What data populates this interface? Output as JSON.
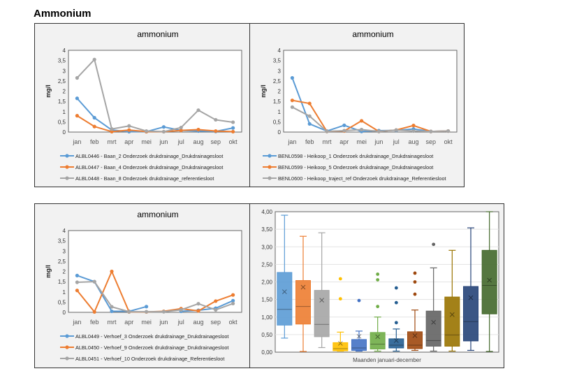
{
  "page_title": "Ammonium",
  "chart_data": [
    {
      "type": "line",
      "title": "ammonium",
      "ylabel": "mg/l",
      "ylim": [
        0,
        4
      ],
      "yticks": [
        "0",
        "0,5",
        "1",
        "1,5",
        "2",
        "2,5",
        "3",
        "3,5",
        "4"
      ],
      "categories": [
        "jan",
        "feb",
        "mrt",
        "apr",
        "mei",
        "jun",
        "jul",
        "aug",
        "sep",
        "okt"
      ],
      "legend": "bottom",
      "series": [
        {
          "name": "ALBL0446 - Baan_2 Onderzoek drukdrainage_Drukdrainagesloot",
          "color": "#5b9bd5",
          "values": [
            1.65,
            0.7,
            0.1,
            0.02,
            0.02,
            0.25,
            0.08,
            0.05,
            0.03,
            0.2
          ]
        },
        {
          "name": "ALBL0447 - Baan_4 Onderzoek drukdrainage_Drukdrainagesloot",
          "color": "#ed7d31",
          "values": [
            0.8,
            0.27,
            0.02,
            0.1,
            0.02,
            0.02,
            0.08,
            0.12,
            0.05,
            0.02
          ]
        },
        {
          "name": "ALBL0448 - Baan_8 Onderzoek drukdrainage_referentiesloot",
          "color": "#a5a5a5",
          "values": [
            2.65,
            3.55,
            0.15,
            0.3,
            0.05,
            0.02,
            0.22,
            1.07,
            0.6,
            0.48
          ]
        }
      ]
    },
    {
      "type": "line",
      "title": "ammonium",
      "ylabel": "mg/l",
      "ylim": [
        0,
        4
      ],
      "yticks": [
        "0",
        "0,5",
        "1",
        "1,5",
        "2",
        "2,5",
        "3",
        "3,5",
        "4"
      ],
      "categories": [
        "jan",
        "feb",
        "mrt",
        "apr",
        "mei",
        "jun",
        "jul",
        "aug",
        "sep",
        "okt"
      ],
      "legend": "bottom",
      "series": [
        {
          "name": "BENL0598 - Heikoop_1 Onderzoek drukdrainage_Drukdrainagesloot",
          "color": "#5b9bd5",
          "values": [
            2.65,
            0.4,
            0.05,
            0.33,
            0.03,
            0.07,
            0.08,
            0.15,
            0.03,
            0.05
          ]
        },
        {
          "name": "BENL0599 - Heikoop_5 Onderzoek drukdrainage_Drukdrainagesloot",
          "color": "#ed7d31",
          "values": [
            1.55,
            1.4,
            0.03,
            0.05,
            0.55,
            0.03,
            0.1,
            0.32,
            0.03,
            0.05
          ]
        },
        {
          "name": "BENL0600 - Heikoop_traject_ref Onderzoek drukdrainage_Referentiesloot",
          "color": "#a5a5a5",
          "values": [
            1.22,
            0.78,
            0.03,
            0.07,
            0.12,
            0.03,
            0.1,
            0.05,
            0.03,
            0.05
          ]
        }
      ]
    },
    {
      "type": "line",
      "title": "ammonium",
      "ylabel": "mg/l",
      "ylim": [
        0,
        4
      ],
      "yticks": [
        "0",
        "0,5",
        "1",
        "1,5",
        "2",
        "2,5",
        "3",
        "3,5",
        "4"
      ],
      "categories": [
        "jan",
        "feb",
        "mrt",
        "apr",
        "mei",
        "jun",
        "jul",
        "aug",
        "sep",
        "okt"
      ],
      "legend": "bottom",
      "series": [
        {
          "name": "ALBL0449 - Verhoef_3 Onderzoek drukdrainage_Drukdrainagesloot",
          "color": "#5b9bd5",
          "values": [
            1.8,
            1.5,
            0.05,
            0.05,
            0.28,
            null,
            0.05,
            0.1,
            0.2,
            0.57
          ]
        },
        {
          "name": "ALBL0450 - Verhoef_9 Onderzoek drukdrainage_Drukdrainagesloot",
          "color": "#ed7d31",
          "values": [
            1.07,
            0.02,
            2.0,
            0.02,
            0.02,
            0.05,
            0.18,
            0.07,
            0.55,
            0.85
          ]
        },
        {
          "name": "ALBL0451 - Verhoef_10 Onderzoek drukdrainage_Referentiesloot",
          "color": "#a5a5a5",
          "values": [
            1.47,
            1.5,
            0.27,
            0.03,
            0.03,
            0.03,
            0.12,
            0.42,
            0.12,
            0.43
          ]
        }
      ]
    },
    {
      "type": "box",
      "xlabel": "Maanden januari-december",
      "ylim": [
        0,
        4
      ],
      "yticks": [
        "0,00",
        "0,50",
        "1,00",
        "1,50",
        "2,00",
        "2,50",
        "3,00",
        "3,50",
        "4,00"
      ],
      "grid": true,
      "boxes": [
        {
          "color": "#5b9bd5",
          "min": 0.4,
          "q1": 0.77,
          "median": 1.22,
          "q3": 2.27,
          "max": 3.9,
          "mean": 1.72,
          "outliers": []
        },
        {
          "color": "#ed7d31",
          "min": 0.02,
          "q1": 0.8,
          "median": 1.3,
          "q3": 2.04,
          "max": 3.3,
          "mean": 1.85,
          "outliers": []
        },
        {
          "color": "#a5a5a5",
          "min": 0.13,
          "q1": 0.44,
          "median": 0.79,
          "q3": 1.76,
          "max": 3.4,
          "mean": 1.48,
          "outliers": []
        },
        {
          "color": "#ffc000",
          "min": 0.03,
          "q1": 0.04,
          "median": 0.1,
          "q3": 0.27,
          "max": 0.57,
          "mean": 0.25,
          "outliers": [
            1.52,
            2.09
          ]
        },
        {
          "color": "#4472c4",
          "min": 0.03,
          "q1": 0.05,
          "median": 0.12,
          "q3": 0.36,
          "max": 0.6,
          "mean": 0.45,
          "outliers": [
            1.47
          ]
        },
        {
          "color": "#70ad47",
          "min": 0.03,
          "q1": 0.09,
          "median": 0.23,
          "q3": 0.56,
          "max": 1.0,
          "mean": 0.44,
          "outliers": [
            1.3,
            2.06,
            2.22
          ]
        },
        {
          "color": "#255e91",
          "min": 0.03,
          "q1": 0.12,
          "median": 0.2,
          "q3": 0.38,
          "max": 0.66,
          "mean": 0.33,
          "outliers": [
            0.84,
            1.41,
            1.83
          ]
        },
        {
          "color": "#9e480e",
          "min": 0.05,
          "q1": 0.1,
          "median": 0.2,
          "q3": 0.58,
          "max": 1.2,
          "mean": 0.47,
          "outliers": [
            1.65,
            2.0,
            2.25
          ]
        },
        {
          "color": "#636363",
          "min": 0.03,
          "q1": 0.17,
          "median": 0.33,
          "q3": 1.17,
          "max": 2.4,
          "mean": 0.85,
          "outliers": [
            3.07
          ]
        },
        {
          "color": "#997300",
          "min": 0.03,
          "q1": 0.17,
          "median": 0.49,
          "q3": 1.57,
          "max": 2.9,
          "mean": 1.07,
          "outliers": []
        },
        {
          "color": "#264478",
          "min": 0.05,
          "q1": 0.32,
          "median": 0.87,
          "q3": 1.87,
          "max": 3.54,
          "mean": 1.55,
          "outliers": []
        },
        {
          "color": "#43682b",
          "min": 0.02,
          "q1": 1.09,
          "median": 1.9,
          "q3": 2.9,
          "max": 4.0,
          "mean": 2.05,
          "outliers": []
        }
      ]
    }
  ]
}
